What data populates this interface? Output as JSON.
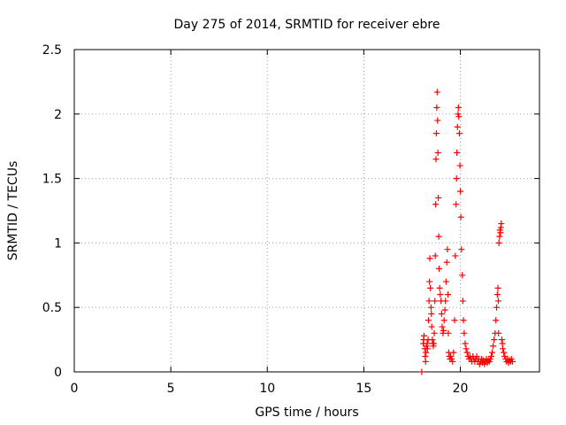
{
  "chart_data": {
    "type": "scatter",
    "title": "Day 275 of 2014, SRMTID for receiver ebre",
    "xlabel": "GPS time / hours",
    "ylabel": "SRMTID / TECUs",
    "xlim": [
      0,
      24.1
    ],
    "ylim": [
      0,
      2.5
    ],
    "xticks": [
      0,
      5,
      10,
      15,
      20
    ],
    "xtick_labels": [
      "0",
      "5",
      "10",
      "15",
      "20"
    ],
    "yticks": [
      0,
      0.5,
      1,
      1.5,
      2,
      2.5
    ],
    "ytick_labels": [
      "0",
      "0.5",
      "1",
      "1.5",
      "2",
      "2.5"
    ],
    "grid": true,
    "marker": "+",
    "series": [
      {
        "name": "SRMTID",
        "color": "#ff0000",
        "points": [
          [
            18.0,
            0.0
          ],
          [
            18.08,
            0.22
          ],
          [
            18.1,
            0.25
          ],
          [
            18.12,
            0.28
          ],
          [
            18.15,
            0.18
          ],
          [
            18.18,
            0.12
          ],
          [
            18.2,
            0.08
          ],
          [
            18.22,
            0.15
          ],
          [
            18.25,
            0.2
          ],
          [
            18.28,
            0.22
          ],
          [
            18.3,
            0.18
          ],
          [
            18.33,
            0.25
          ],
          [
            18.35,
            0.4
          ],
          [
            18.38,
            0.55
          ],
          [
            18.4,
            0.7
          ],
          [
            18.42,
            0.88
          ],
          [
            18.45,
            0.65
          ],
          [
            18.48,
            0.5
          ],
          [
            18.5,
            0.45
          ],
          [
            18.52,
            0.35
          ],
          [
            18.55,
            0.25
          ],
          [
            18.58,
            0.22
          ],
          [
            18.6,
            0.2
          ],
          [
            18.62,
            0.22
          ],
          [
            18.65,
            0.3
          ],
          [
            18.68,
            0.55
          ],
          [
            18.7,
            0.9
          ],
          [
            18.72,
            1.3
          ],
          [
            18.74,
            1.65
          ],
          [
            18.76,
            1.85
          ],
          [
            18.78,
            2.05
          ],
          [
            18.8,
            2.17
          ],
          [
            18.82,
            1.95
          ],
          [
            18.84,
            1.7
          ],
          [
            18.86,
            1.35
          ],
          [
            18.88,
            1.05
          ],
          [
            18.9,
            0.8
          ],
          [
            18.93,
            0.65
          ],
          [
            18.96,
            0.6
          ],
          [
            19.0,
            0.55
          ],
          [
            19.03,
            0.45
          ],
          [
            19.06,
            0.35
          ],
          [
            19.1,
            0.3
          ],
          [
            19.13,
            0.32
          ],
          [
            19.16,
            0.4
          ],
          [
            19.2,
            0.48
          ],
          [
            19.23,
            0.55
          ],
          [
            19.26,
            0.7
          ],
          [
            19.3,
            0.85
          ],
          [
            19.33,
            0.95
          ],
          [
            19.36,
            0.6
          ],
          [
            19.38,
            0.3
          ],
          [
            19.4,
            0.15
          ],
          [
            19.43,
            0.12
          ],
          [
            19.46,
            0.1
          ],
          [
            19.5,
            0.12
          ],
          [
            19.55,
            0.1
          ],
          [
            19.6,
            0.08
          ],
          [
            19.65,
            0.15
          ],
          [
            19.7,
            0.4
          ],
          [
            19.74,
            0.9
          ],
          [
            19.78,
            1.3
          ],
          [
            19.8,
            1.5
          ],
          [
            19.82,
            1.7
          ],
          [
            19.85,
            1.9
          ],
          [
            19.88,
            2.0
          ],
          [
            19.9,
            2.05
          ],
          [
            19.92,
            1.98
          ],
          [
            19.95,
            1.85
          ],
          [
            19.98,
            1.6
          ],
          [
            20.0,
            1.4
          ],
          [
            20.03,
            1.2
          ],
          [
            20.06,
            0.95
          ],
          [
            20.1,
            0.75
          ],
          [
            20.13,
            0.55
          ],
          [
            20.16,
            0.4
          ],
          [
            20.2,
            0.3
          ],
          [
            20.25,
            0.22
          ],
          [
            20.3,
            0.18
          ],
          [
            20.35,
            0.15
          ],
          [
            20.4,
            0.12
          ],
          [
            20.45,
            0.1
          ],
          [
            20.5,
            0.12
          ],
          [
            20.55,
            0.1
          ],
          [
            20.6,
            0.08
          ],
          [
            20.65,
            0.12
          ],
          [
            20.7,
            0.1
          ],
          [
            20.75,
            0.08
          ],
          [
            20.8,
            0.1
          ],
          [
            20.85,
            0.12
          ],
          [
            20.9,
            0.08
          ],
          [
            20.95,
            0.1
          ],
          [
            21.0,
            0.06
          ],
          [
            21.05,
            0.08
          ],
          [
            21.1,
            0.1
          ],
          [
            21.15,
            0.07
          ],
          [
            21.2,
            0.09
          ],
          [
            21.25,
            0.06
          ],
          [
            21.3,
            0.08
          ],
          [
            21.35,
            0.1
          ],
          [
            21.4,
            0.07
          ],
          [
            21.45,
            0.09
          ],
          [
            21.5,
            0.08
          ],
          [
            21.55,
            0.1
          ],
          [
            21.6,
            0.12
          ],
          [
            21.65,
            0.15
          ],
          [
            21.7,
            0.2
          ],
          [
            21.75,
            0.25
          ],
          [
            21.8,
            0.3
          ],
          [
            21.84,
            0.4
          ],
          [
            21.88,
            0.5
          ],
          [
            21.92,
            0.6
          ],
          [
            21.95,
            0.65
          ],
          [
            21.97,
            0.55
          ],
          [
            21.98,
            0.3
          ],
          [
            22.0,
            1.0
          ],
          [
            22.03,
            1.05
          ],
          [
            22.05,
            1.1
          ],
          [
            22.08,
            1.08
          ],
          [
            22.1,
            1.12
          ],
          [
            22.12,
            1.15
          ],
          [
            22.15,
            0.25
          ],
          [
            22.18,
            0.22
          ],
          [
            22.2,
            0.18
          ],
          [
            22.25,
            0.15
          ],
          [
            22.3,
            0.12
          ],
          [
            22.35,
            0.1
          ],
          [
            22.4,
            0.08
          ],
          [
            22.45,
            0.1
          ],
          [
            22.5,
            0.07
          ],
          [
            22.55,
            0.09
          ],
          [
            22.6,
            0.08
          ],
          [
            22.65,
            0.1
          ],
          [
            22.7,
            0.08
          ]
        ]
      }
    ]
  }
}
